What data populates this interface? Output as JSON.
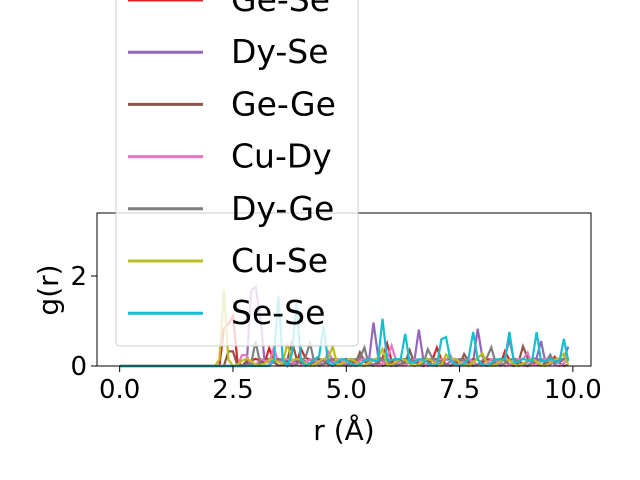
{
  "chart_data": {
    "type": "line",
    "title": "",
    "xlabel": "r (Å)",
    "ylabel": "g(r)",
    "xlim": [
      -0.5,
      10.4
    ],
    "ylim": [
      0,
      3.4
    ],
    "xticks": [
      0.0,
      2.5,
      5.0,
      7.5,
      10.0
    ],
    "xtick_labels": [
      "0.0",
      "2.5",
      "5.0",
      "7.5",
      "10.0"
    ],
    "yticks": [
      0,
      2
    ],
    "ytick_labels": [
      "0",
      "2"
    ],
    "legend_position": "upper-left, extending above the plot area",
    "series": [
      {
        "name": "Ge-Se",
        "color": "#d62728",
        "peaks": [
          [
            2.35,
            1.55
          ],
          [
            2.5,
            1.1
          ],
          [
            3.3,
            0.4
          ],
          [
            4.0,
            0.3
          ],
          [
            5.9,
            0.35
          ],
          [
            7.0,
            0.25
          ],
          [
            8.5,
            0.3
          ],
          [
            9.6,
            0.2
          ]
        ]
      },
      {
        "name": "Dy-Se",
        "color": "#9467bd",
        "peaks": [
          [
            2.95,
            3.1
          ],
          [
            3.1,
            1.1
          ],
          [
            5.6,
            0.85
          ],
          [
            6.6,
            0.8
          ],
          [
            7.9,
            0.7
          ],
          [
            8.6,
            0.45
          ],
          [
            9.3,
            0.5
          ],
          [
            9.9,
            0.4
          ]
        ]
      },
      {
        "name": "Ge-Ge",
        "color": "#8c564b",
        "peaks": [
          [
            2.45,
            0.6
          ],
          [
            3.8,
            0.4
          ],
          [
            5.3,
            0.3
          ],
          [
            6.4,
            0.35
          ],
          [
            7.6,
            0.25
          ],
          [
            8.9,
            0.3
          ]
        ]
      },
      {
        "name": "Cu-Dy",
        "color": "#e377c2",
        "peaks": [
          [
            2.75,
            0.45
          ],
          [
            3.4,
            0.4
          ],
          [
            4.6,
            0.3
          ],
          [
            6.0,
            0.3
          ],
          [
            7.3,
            0.2
          ],
          [
            9.0,
            0.25
          ]
        ]
      },
      {
        "name": "Dy-Ge",
        "color": "#7f7f7f",
        "peaks": [
          [
            3.0,
            0.55
          ],
          [
            4.2,
            0.4
          ],
          [
            5.4,
            0.35
          ],
          [
            6.8,
            0.3
          ],
          [
            8.2,
            0.3
          ],
          [
            9.5,
            0.25
          ]
        ]
      },
      {
        "name": "Cu-Se",
        "color": "#bcbd22",
        "peaks": [
          [
            2.3,
            1.7
          ],
          [
            3.7,
            0.5
          ],
          [
            4.7,
            0.4
          ],
          [
            5.8,
            0.3
          ],
          [
            7.2,
            0.2
          ],
          [
            8.0,
            0.15
          ],
          [
            9.8,
            0.2
          ]
        ]
      },
      {
        "name": "Se-Se",
        "color": "#17becf",
        "peaks": [
          [
            3.5,
            1.55
          ],
          [
            3.9,
            1.3
          ],
          [
            4.5,
            0.8
          ],
          [
            5.8,
            1.05
          ],
          [
            6.3,
            0.7
          ],
          [
            7.15,
            0.9
          ],
          [
            7.8,
            0.6
          ],
          [
            8.6,
            0.75
          ],
          [
            9.2,
            0.75
          ],
          [
            9.8,
            0.6
          ]
        ]
      }
    ]
  }
}
